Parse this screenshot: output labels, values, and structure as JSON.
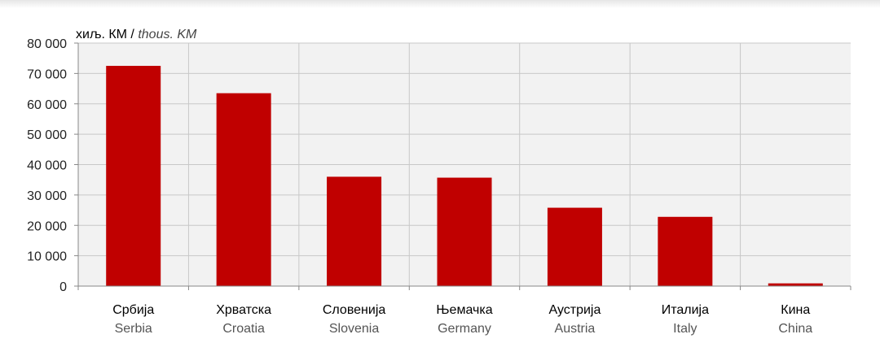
{
  "chart_data": {
    "type": "bar",
    "unit_label": {
      "local": "хиљ. КМ",
      "separator": " / ",
      "en": "thous. KM"
    },
    "categories": [
      {
        "local": "Србија",
        "en": "Serbia"
      },
      {
        "local": "Хрватска",
        "en": "Croatia"
      },
      {
        "local": "Словенија",
        "en": "Slovenia"
      },
      {
        "local": "Њемачка",
        "en": "Germany"
      },
      {
        "local": "Аустрија",
        "en": "Austria"
      },
      {
        "local": "Италија",
        "en": "Italy"
      },
      {
        "local": "Кина",
        "en": "China"
      }
    ],
    "values": [
      72500,
      63500,
      36000,
      35700,
      25800,
      22800,
      900
    ],
    "ylim": [
      0,
      80000
    ],
    "yticks": [
      0,
      10000,
      20000,
      30000,
      40000,
      50000,
      60000,
      70000,
      80000
    ],
    "ytick_labels": [
      "0",
      "10 000",
      "20 000",
      "30 000",
      "40 000",
      "50 000",
      "60 000",
      "70 000",
      "80 000"
    ],
    "grid": true,
    "bar_color": "#c00000",
    "grid_color": "#c8c8c8",
    "plot_background": "#f2f2f2"
  }
}
